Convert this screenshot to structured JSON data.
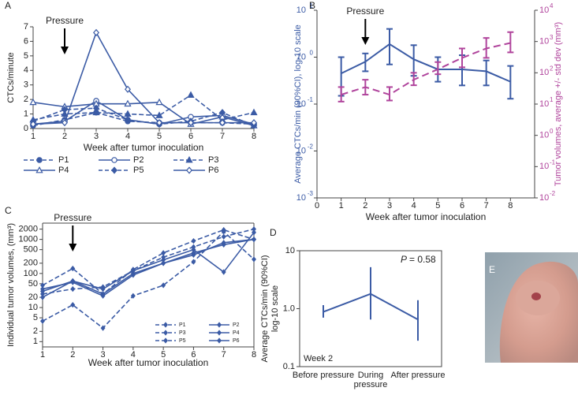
{
  "chart_data": [
    {
      "type": "line",
      "panel_label": "A",
      "ylabel": "CTCs/minute",
      "xlabel": "Week after tumor inoculation",
      "annotation": {
        "text": "Pressure",
        "x": 2
      },
      "legend": "below",
      "x": [
        1,
        2,
        3,
        4,
        5,
        6,
        7,
        8
      ],
      "xlim": [
        1,
        8
      ],
      "xticks": [
        1,
        2,
        3,
        4,
        5,
        6,
        7,
        8
      ],
      "ylim": [
        0,
        7
      ],
      "yticks": [
        0,
        1,
        2,
        3,
        4,
        5,
        6,
        7
      ],
      "series": [
        {
          "name": "P1",
          "color": "#3b5ba5",
          "marker": "circle-filled",
          "dash": true,
          "values": [
            0.2,
            0.6,
            1.1,
            0.5,
            0.4,
            0.4,
            0.4,
            0.3
          ]
        },
        {
          "name": "P2",
          "color": "#3b5ba5",
          "marker": "circle-open",
          "dash": false,
          "values": [
            0.3,
            0.5,
            1.9,
            0.6,
            0.3,
            0.8,
            0.9,
            0.3
          ]
        },
        {
          "name": "P3",
          "color": "#3b5ba5",
          "marker": "triangle-filled",
          "dash": true,
          "values": [
            0.6,
            1.0,
            1.1,
            1.0,
            0.9,
            2.3,
            0.6,
            1.1
          ]
        },
        {
          "name": "P4",
          "color": "#3b5ba5",
          "marker": "triangle-open",
          "dash": false,
          "values": [
            1.8,
            1.5,
            1.7,
            1.7,
            1.8,
            0.3,
            0.8,
            0.2
          ]
        },
        {
          "name": "P5",
          "color": "#3b5ba5",
          "marker": "diamond-filled",
          "dash": true,
          "values": [
            0.5,
            1.3,
            1.4,
            0.6,
            0.3,
            0.5,
            1.1,
            0.2
          ]
        },
        {
          "name": "P6",
          "color": "#3b5ba5",
          "marker": "diamond-open",
          "dash": false,
          "values": [
            0.3,
            0.4,
            6.6,
            2.7,
            0.4,
            0.4,
            0.4,
            0.4
          ]
        }
      ]
    },
    {
      "type": "line",
      "panel_label": "B",
      "ylabel": "Average CTCs/min (90%CI), log-10 scale",
      "y2label": "Tumor volumes, average +/- std dev (mm³)",
      "xlabel": "Week after tumor inoculation",
      "annotation": {
        "text": "Pressure",
        "x": 2
      },
      "x": [
        1,
        2,
        3,
        4,
        5,
        6,
        7,
        8
      ],
      "xlim": [
        0,
        9
      ],
      "xticks": [
        0,
        1,
        2,
        3,
        4,
        5,
        6,
        7,
        8
      ],
      "ylog": true,
      "ylim": [
        0.001,
        10
      ],
      "yticks": [
        {
          "value": 0.001,
          "label": "10",
          "exponent": "-3"
        },
        {
          "value": 0.01,
          "label": "10",
          "exponent": "-2"
        },
        {
          "value": 0.1,
          "label": "10",
          "exponent": "-1"
        },
        {
          "value": 1,
          "label": "10",
          "exponent": "0"
        },
        {
          "value": 10,
          "label": "10",
          "exponent": "1"
        }
      ],
      "y2lim": [
        0.01,
        10000
      ],
      "y2ticks": [
        {
          "value": 0.01,
          "label": "10",
          "exponent": "-2"
        },
        {
          "value": 0.1,
          "label": "10",
          "exponent": "-1"
        },
        {
          "value": 1,
          "label": "10",
          "exponent": "0"
        },
        {
          "value": 10,
          "label": "10",
          "exponent": "1"
        },
        {
          "value": 100,
          "label": "10",
          "exponent": "2"
        },
        {
          "value": 1000,
          "label": "10",
          "exponent": "3"
        },
        {
          "value": 10000,
          "label": "10",
          "exponent": "4"
        }
      ],
      "series": [
        {
          "color": "#3b5ba5",
          "dash": false,
          "values": [
            0.45,
            0.8,
            1.9,
            0.9,
            0.55,
            0.55,
            0.5,
            0.3
          ],
          "low": [
            0.15,
            0.5,
            0.7,
            0.4,
            0.3,
            0.25,
            0.25,
            0.13
          ],
          "high": [
            1.0,
            1.2,
            4.0,
            1.8,
            1.0,
            1.1,
            0.85,
            0.65
          ]
        },
        {
          "color": "#b0449c",
          "dash": true,
          "axis": "y2",
          "values": [
            20,
            35,
            20,
            60,
            130,
            300,
            600,
            900
          ],
          "low": [
            12,
            20,
            13,
            40,
            90,
            150,
            300,
            450
          ],
          "high": [
            35,
            60,
            35,
            100,
            220,
            600,
            1300,
            2000
          ]
        }
      ]
    },
    {
      "type": "line",
      "panel_label": "C",
      "ylabel": "Individual tumor volumes, (mm³)",
      "xlabel": "Week after tumor inoculation",
      "annotation": {
        "text": "Pressure",
        "x": 2
      },
      "legend": "lower right",
      "box": true,
      "x": [
        1,
        2,
        3,
        4,
        5,
        6,
        7,
        8
      ],
      "xlim": [
        1,
        8
      ],
      "xticks": [
        1,
        2,
        3,
        4,
        5,
        6,
        7,
        8
      ],
      "ylog": true,
      "ylim": [
        0.7,
        3000
      ],
      "yticks": [
        1,
        2,
        5,
        10,
        20,
        50,
        100,
        200,
        500,
        1000,
        2000
      ],
      "series": [
        {
          "name": "P1",
          "color": "#3b5ba5",
          "marker": "diamond-small",
          "dash": true,
          "values": [
            4,
            12,
            2.5,
            22,
            45,
            220,
            1700,
            260
          ]
        },
        {
          "name": "P2",
          "color": "#3b5ba5",
          "marker": "diamond-small",
          "dash": false,
          "values": [
            20,
            60,
            25,
            100,
            200,
            400,
            700,
            1000
          ]
        },
        {
          "name": "P3",
          "color": "#3b5ba5",
          "marker": "diamond-small",
          "dash": true,
          "values": [
            45,
            140,
            25,
            130,
            400,
            900,
            1900,
            1000
          ]
        },
        {
          "name": "P4",
          "color": "#3b5ba5",
          "marker": "diamond-small",
          "dash": false,
          "values": [
            30,
            60,
            35,
            120,
            250,
            500,
            110,
            1600
          ]
        },
        {
          "name": "P5",
          "color": "#3b5ba5",
          "marker": "diamond-small",
          "dash": true,
          "values": [
            25,
            35,
            40,
            120,
            300,
            600,
            1200,
            2000
          ]
        },
        {
          "name": "P6",
          "color": "#3b5ba5",
          "marker": "diamond-small",
          "dash": false,
          "values": [
            35,
            55,
            22,
            90,
            200,
            350,
            800,
            1000
          ]
        }
      ]
    },
    {
      "type": "errorbar",
      "panel_label": "D",
      "ylabel": [
        "Average CTCs/min (90%CI)",
        "log-10 scale"
      ],
      "stat_symbol": "P",
      "stat_text": "= 0.58",
      "note": "Week 2",
      "box": true,
      "categories": [
        "Before pressure",
        "During pressure",
        "After pressure"
      ],
      "ylog": true,
      "ylim": [
        0.1,
        10
      ],
      "yticks": [
        0.1,
        {
          "value": 1,
          "label": "1.0"
        },
        10
      ],
      "color": "#3b5ba5",
      "values": [
        0.88,
        1.8,
        0.65
      ],
      "low": [
        0.7,
        0.65,
        0.28
      ],
      "high": [
        1.15,
        5.2,
        1.4
      ]
    },
    {
      "type": "image",
      "panel_label": "E"
    }
  ]
}
